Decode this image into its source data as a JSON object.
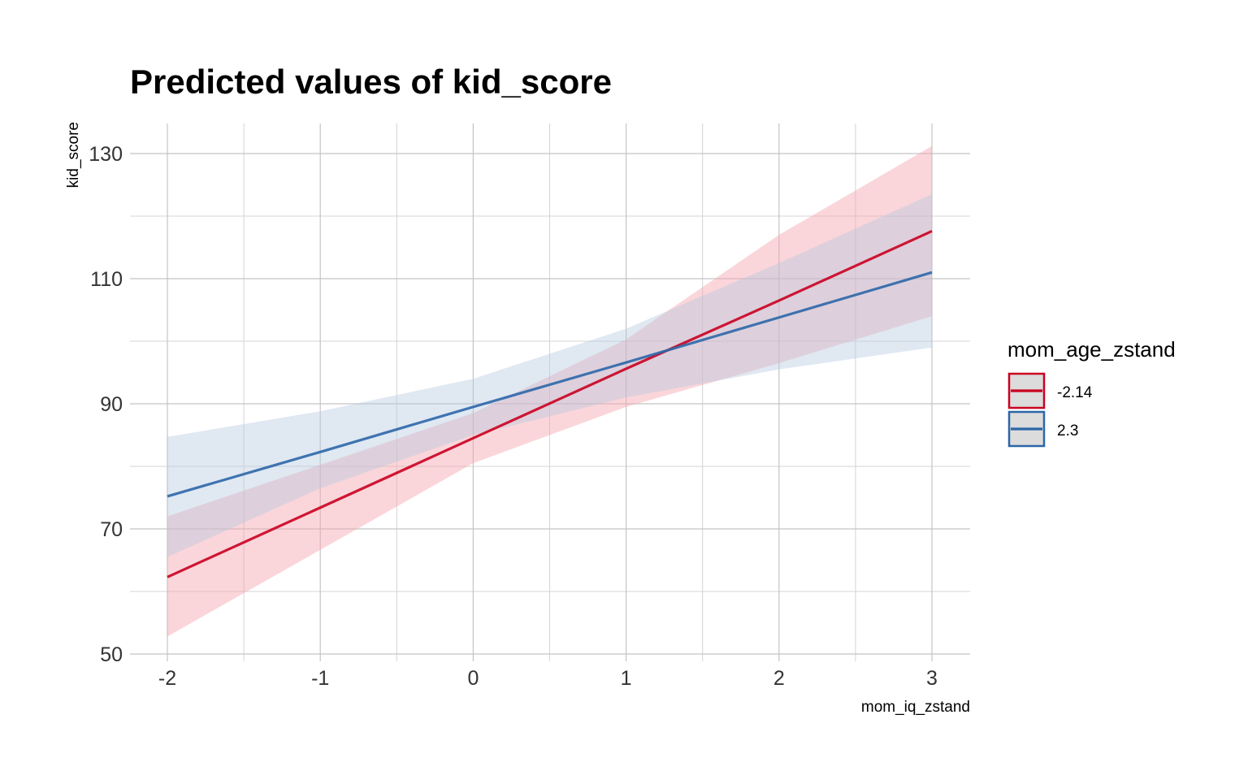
{
  "chart_data": {
    "type": "line",
    "title": "Predicted values of kid_score",
    "xlabel": "mom_iq_zstand",
    "ylabel": "kid_score",
    "xlim": [
      -2.25,
      3.25
    ],
    "ylim": [
      48.5,
      135
    ],
    "x_ticks": [
      -2,
      -1,
      0,
      1,
      2,
      3
    ],
    "x_minor_ticks": [
      -1.5,
      -0.5,
      0.5,
      1.5,
      2.5
    ],
    "y_ticks": [
      50,
      70,
      90,
      110,
      130
    ],
    "y_minor_ticks": [
      60,
      80,
      100,
      120
    ],
    "x_tick_labels": [
      "-2",
      "-1",
      "0",
      "1",
      "2",
      "3"
    ],
    "y_tick_labels": [
      "50",
      "70",
      "90",
      "110",
      "130"
    ],
    "grid": true,
    "legend": {
      "title": "mom_age_zstand",
      "position": "right"
    },
    "series": [
      {
        "name": "-2.14",
        "color": "#ca0020",
        "band_color": "#f4a5ae",
        "x": [
          -2,
          0,
          1,
          2,
          3
        ],
        "y": [
          62.3,
          84.5,
          95.6,
          106.5,
          117.6
        ],
        "lower": [
          52.8,
          80.5,
          89.5,
          96.5,
          104.0
        ],
        "upper": [
          72.0,
          88.5,
          100.3,
          117.0,
          131.2
        ]
      },
      {
        "name": "2.3",
        "color": "#2c66a8",
        "band_color": "#b4c7df",
        "x": [
          -2,
          -1,
          0,
          1,
          2,
          3
        ],
        "y": [
          75.2,
          82.3,
          89.5,
          96.6,
          103.8,
          111.0
        ],
        "lower": [
          65.5,
          76.5,
          85.0,
          91.0,
          95.5,
          99.0
        ],
        "upper": [
          84.7,
          88.8,
          94.0,
          102.0,
          112.5,
          123.5
        ]
      }
    ]
  }
}
